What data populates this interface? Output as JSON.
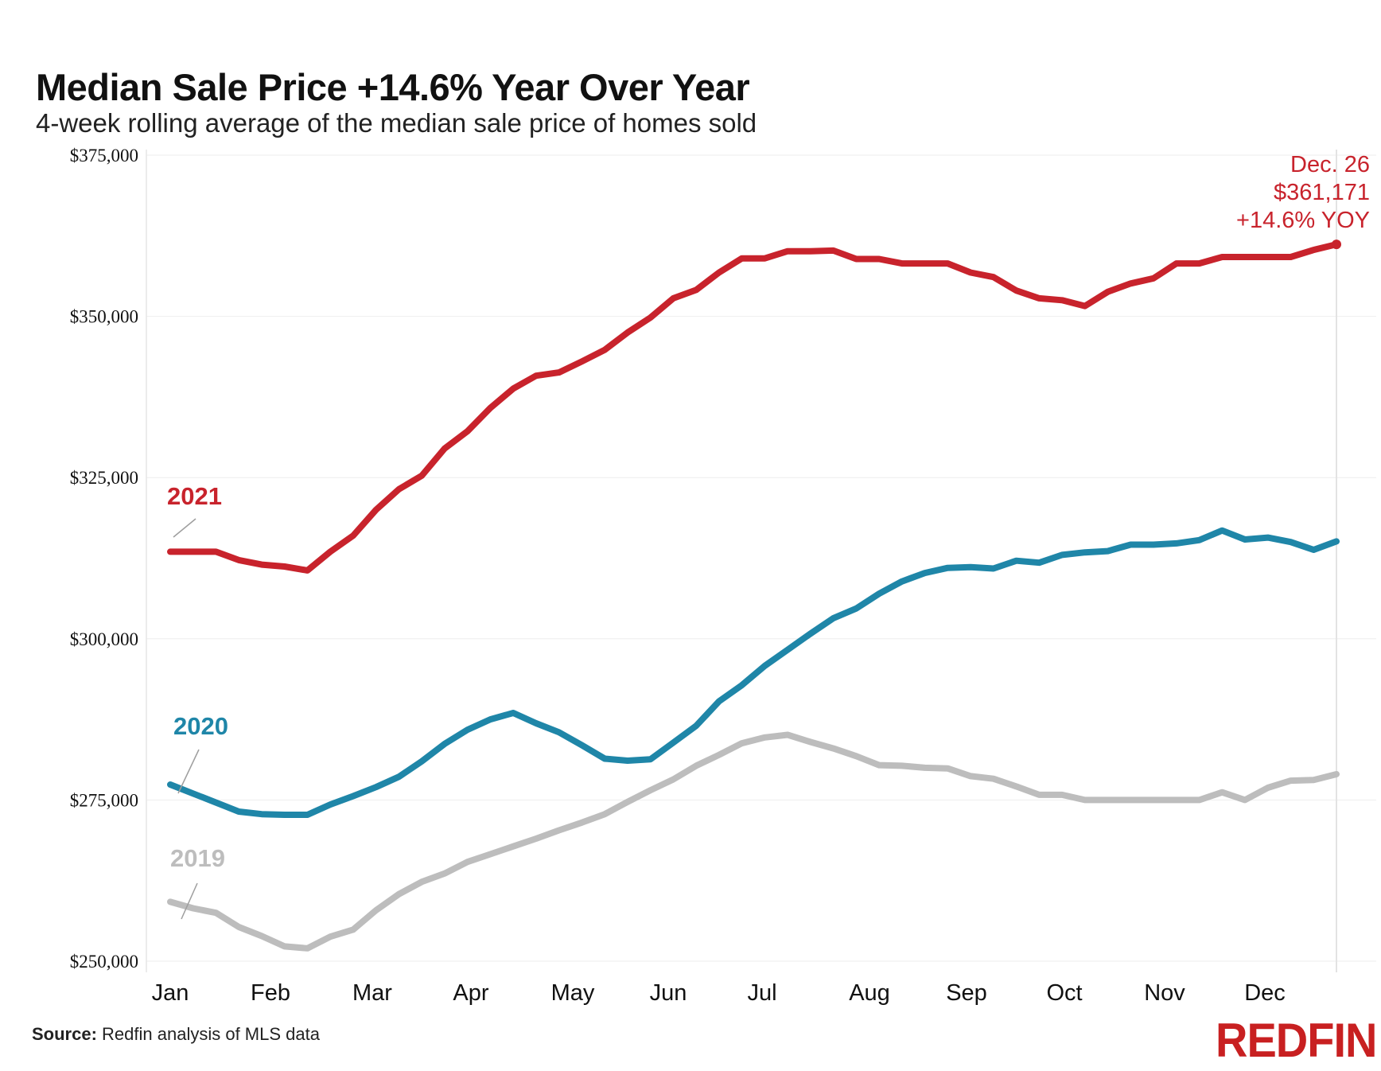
{
  "header": {
    "title": "Median Sale Price +14.6% Year Over Year",
    "subtitle": "4-week rolling average of the median sale price of homes sold"
  },
  "footer": {
    "source_label": "Source:",
    "source_text": "Redfin analysis of MLS data",
    "logo": "REDFIN"
  },
  "colors": {
    "2021": "#c8232c",
    "2020": "#1f86a8",
    "2019": "#bdbdbd",
    "grid": "#eeeeee"
  },
  "chart_data": {
    "type": "line",
    "title": "Median Sale Price +14.6% Year Over Year",
    "subtitle": "4-week rolling average of the median sale price of homes sold",
    "xlabel": "",
    "ylabel": "",
    "x_tick_labels": [
      "Jan",
      "Feb",
      "Mar",
      "Apr",
      "May",
      "Jun",
      "Jul",
      "Aug",
      "Sep",
      "Oct",
      "Nov",
      "Dec"
    ],
    "y_tick_labels": [
      "$250,000",
      "$275,000",
      "$300,000",
      "$325,000",
      "$350,000",
      "$375,000"
    ],
    "ylim": [
      250000,
      375000
    ],
    "x_unit": "week of year",
    "xlim": [
      1,
      52
    ],
    "grid": true,
    "series": [
      {
        "name": "2021",
        "color": "#c8232c",
        "x": [
          1,
          2,
          3,
          4,
          5,
          6,
          7,
          8,
          9,
          10,
          11,
          12,
          13,
          14,
          15,
          16,
          17,
          18,
          19,
          20,
          21,
          22,
          23,
          24,
          25,
          26,
          27,
          28,
          29,
          30,
          31,
          32,
          33,
          34,
          35,
          36,
          37,
          38,
          39,
          40,
          41,
          42,
          43,
          44,
          45,
          46,
          47,
          48,
          49,
          50,
          51,
          52
        ],
        "values": [
          313500,
          313500,
          313500,
          312200,
          311500,
          311200,
          310600,
          313500,
          316000,
          320000,
          323200,
          325300,
          329500,
          332200,
          335800,
          338800,
          340800,
          341300,
          343000,
          344800,
          347500,
          349800,
          352800,
          354100,
          356800,
          359000,
          359000,
          360100,
          360100,
          360200,
          358900,
          358900,
          358200,
          358200,
          358200,
          356800,
          356100,
          354000,
          352800,
          352500,
          351600,
          353800,
          355100,
          355900,
          358200,
          358200,
          359200,
          359200,
          359200,
          359200,
          360300,
          361171
        ]
      },
      {
        "name": "2020",
        "color": "#1f86a8",
        "x": [
          1,
          2,
          3,
          4,
          5,
          6,
          7,
          8,
          9,
          10,
          11,
          12,
          13,
          14,
          15,
          16,
          17,
          18,
          19,
          20,
          21,
          22,
          23,
          24,
          25,
          26,
          27,
          28,
          29,
          30,
          31,
          32,
          33,
          34,
          35,
          36,
          37,
          38,
          39,
          40,
          41,
          42,
          43,
          44,
          45,
          46,
          47,
          48,
          49,
          50,
          51,
          52
        ],
        "values": [
          277400,
          276000,
          274600,
          273200,
          272800,
          272700,
          272700,
          274300,
          275600,
          277000,
          278600,
          281000,
          283700,
          285900,
          287500,
          288500,
          286900,
          285500,
          283500,
          281400,
          281100,
          281300,
          283900,
          286500,
          290300,
          292800,
          295800,
          298300,
          300800,
          303200,
          304700,
          307000,
          308900,
          310200,
          311000,
          311100,
          310900,
          312100,
          311800,
          313000,
          313400,
          313600,
          314600,
          314600,
          314800,
          315300,
          316800,
          315400,
          315700,
          315000,
          313800,
          315100
        ]
      },
      {
        "name": "2019",
        "color": "#bdbdbd",
        "x": [
          1,
          2,
          3,
          4,
          5,
          6,
          7,
          8,
          9,
          10,
          11,
          12,
          13,
          14,
          15,
          16,
          17,
          18,
          19,
          20,
          21,
          22,
          23,
          24,
          25,
          26,
          27,
          28,
          29,
          30,
          31,
          32,
          33,
          34,
          35,
          36,
          37,
          38,
          39,
          40,
          41,
          42,
          43,
          44,
          45,
          46,
          47,
          48,
          49,
          50,
          51,
          52
        ],
        "values": [
          259200,
          258200,
          257500,
          255300,
          253900,
          252300,
          252000,
          253800,
          254900,
          257900,
          260400,
          262300,
          263600,
          265400,
          266600,
          267800,
          269000,
          270300,
          271500,
          272800,
          274700,
          276500,
          278200,
          280300,
          282000,
          283800,
          284700,
          285100,
          284000,
          283000,
          281800,
          280400,
          280300,
          280000,
          279900,
          278700,
          278300,
          277100,
          275800,
          275800,
          275000,
          275000,
          275000,
          275000,
          275000,
          275000,
          276200,
          275000,
          276900,
          278000,
          278100,
          279000
        ]
      }
    ],
    "annotations": [
      {
        "series": "2021",
        "label": "2021"
      },
      {
        "series": "2020",
        "label": "2020"
      },
      {
        "series": "2019",
        "label": "2019"
      },
      {
        "series": "2021",
        "x": 52,
        "lines": [
          "Dec. 26",
          "$361,171",
          "+14.6% YOY"
        ]
      }
    ]
  }
}
